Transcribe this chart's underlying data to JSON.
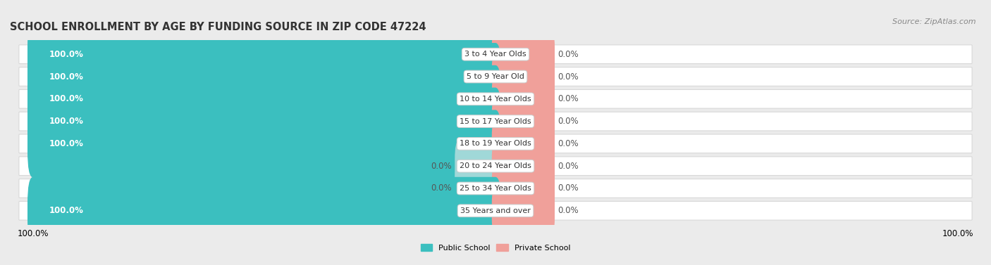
{
  "title": "SCHOOL ENROLLMENT BY AGE BY FUNDING SOURCE IN ZIP CODE 47224",
  "source": "Source: ZipAtlas.com",
  "categories": [
    "3 to 4 Year Olds",
    "5 to 9 Year Old",
    "10 to 14 Year Olds",
    "15 to 17 Year Olds",
    "18 to 19 Year Olds",
    "20 to 24 Year Olds",
    "25 to 34 Year Olds",
    "35 Years and over"
  ],
  "public_values": [
    100.0,
    100.0,
    100.0,
    100.0,
    100.0,
    0.0,
    0.0,
    100.0
  ],
  "private_values": [
    0.0,
    0.0,
    0.0,
    0.0,
    0.0,
    0.0,
    0.0,
    0.0
  ],
  "public_color": "#3bbfbf",
  "private_color": "#f0a09a",
  "public_color_zero": "#a0d8d8",
  "row_bg_color": "#ffffff",
  "row_border_color": "#d8d8d8",
  "figure_bg_color": "#ebebeb",
  "label_fg_dark": "#555555",
  "label_fg_white": "#ffffff",
  "bar_height": 0.62,
  "title_fontsize": 10.5,
  "source_fontsize": 8,
  "bar_label_fontsize": 8.5,
  "category_fontsize": 8,
  "legend_fontsize": 8,
  "x_left_label": "100.0%",
  "x_right_label": "100.0%"
}
